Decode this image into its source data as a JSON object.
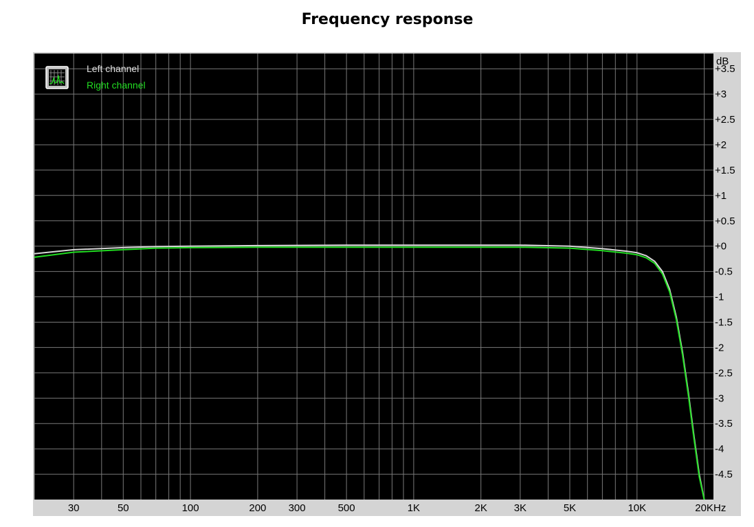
{
  "title": "Frequency response",
  "chart_data": {
    "type": "line",
    "title": "Frequency response",
    "xlabel": "Hz",
    "ylabel": "dB",
    "x_scale": "log",
    "xlim": [
      20,
      22000
    ],
    "ylim": [
      -5,
      3.8
    ],
    "x_tick_labels": [
      "30",
      "50",
      "100",
      "200",
      "300",
      "500",
      "1K",
      "2K",
      "3K",
      "5K",
      "10K",
      "20K"
    ],
    "x_ticks": [
      30,
      50,
      100,
      200,
      300,
      500,
      1000,
      2000,
      3000,
      5000,
      10000,
      20000
    ],
    "y_tick_labels": [
      "+3.5",
      "+3",
      "+2.5",
      "+2",
      "+1.5",
      "+1",
      "+0.5",
      "+0",
      "-0.5",
      "-1",
      "-1.5",
      "-2",
      "-2.5",
      "-3",
      "-3.5",
      "-4",
      "-4.5"
    ],
    "y_ticks": [
      3.5,
      3,
      2.5,
      2,
      1.5,
      1,
      0.5,
      0,
      -0.5,
      -1,
      -1.5,
      -2,
      -2.5,
      -3,
      -3.5,
      -4,
      -4.5
    ],
    "grid": true,
    "legend_position": "top-left",
    "colors": {
      "background": "#000000",
      "grid": "#7a7a7a",
      "frame": "#d4d4d4"
    },
    "series": [
      {
        "name": "Left channel",
        "color": "#d8d8d8",
        "x": [
          20,
          30,
          50,
          70,
          100,
          200,
          500,
          1000,
          2000,
          3000,
          5000,
          7000,
          9000,
          10000,
          11000,
          12000,
          13000,
          14000,
          15000,
          16000,
          17000,
          18000,
          19000,
          20000
        ],
        "y": [
          -0.15,
          -0.07,
          -0.03,
          -0.01,
          0.0,
          0.01,
          0.02,
          0.02,
          0.02,
          0.02,
          0.0,
          -0.05,
          -0.1,
          -0.13,
          -0.19,
          -0.3,
          -0.5,
          -0.85,
          -1.4,
          -2.1,
          -2.9,
          -3.75,
          -4.5,
          -5.0
        ]
      },
      {
        "name": "Right channel",
        "color": "#22dd22",
        "x": [
          20,
          30,
          50,
          70,
          100,
          200,
          500,
          1000,
          2000,
          3000,
          5000,
          7000,
          9000,
          10000,
          11000,
          12000,
          13000,
          14000,
          15000,
          16000,
          17000,
          18000,
          19000,
          20000
        ],
        "y": [
          -0.22,
          -0.12,
          -0.07,
          -0.04,
          -0.03,
          -0.02,
          -0.02,
          -0.02,
          -0.02,
          -0.02,
          -0.04,
          -0.09,
          -0.14,
          -0.17,
          -0.23,
          -0.34,
          -0.55,
          -0.9,
          -1.45,
          -2.15,
          -2.95,
          -3.8,
          -4.55,
          -5.0
        ]
      }
    ]
  }
}
